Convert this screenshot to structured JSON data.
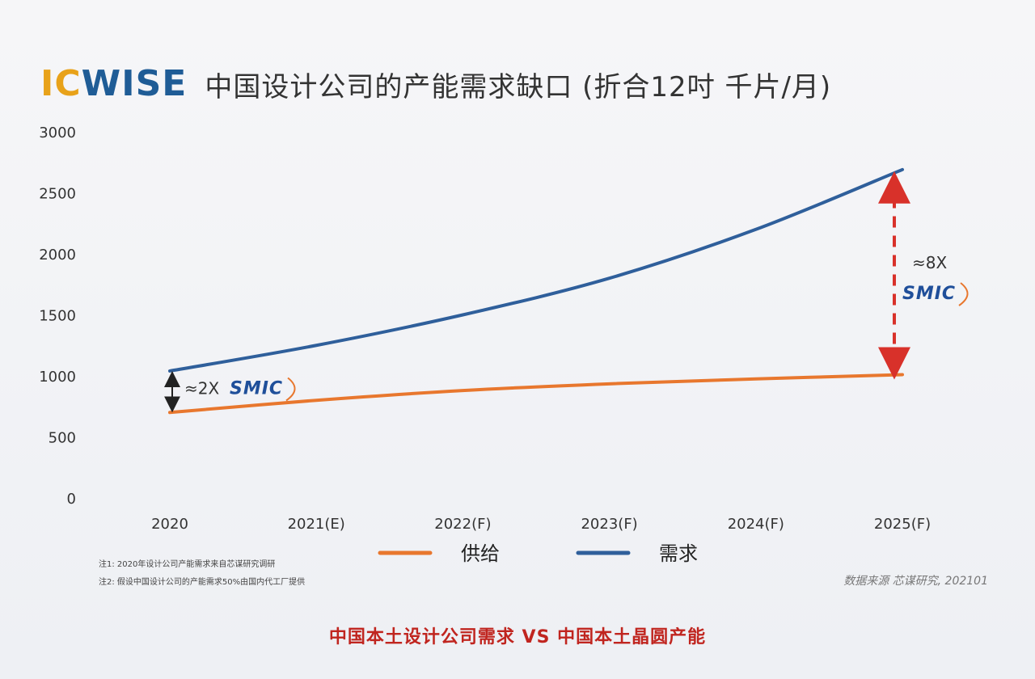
{
  "header": {
    "brand_part1": "IC",
    "brand_part2": "WISE",
    "title": "中国设计公司的产能需求缺口 (折合12吋 千片/月)"
  },
  "chart_data": {
    "type": "line",
    "categories": [
      "2020",
      "2021(E)",
      "2022(F)",
      "2023(F)",
      "2024(F)",
      "2025(F)"
    ],
    "ylim": [
      0,
      3000
    ],
    "yticks": [
      0,
      500,
      1000,
      1500,
      2000,
      2500,
      3000
    ],
    "grid": false,
    "legend_position": "bottom",
    "series": [
      {
        "name": "供给",
        "color": "#e8772e",
        "values": [
          700,
          800,
          880,
          935,
          975,
          1010
        ]
      },
      {
        "name": "需求",
        "color": "#2f5f9b",
        "values": [
          1040,
          1250,
          1500,
          1800,
          2200,
          2690
        ]
      }
    ],
    "annotations": [
      {
        "label": "≈2X",
        "logo": "SMIC",
        "category": "2020",
        "from": 700,
        "to": 1040,
        "arrow_color": "#222"
      },
      {
        "label": "≈8X",
        "logo": "SMIC",
        "category": "2025(F)",
        "from": 1010,
        "to": 2690,
        "arrow_color": "#d8312a"
      }
    ]
  },
  "notes": [
    "注1: 2020年设计公司产能需求来自芯谋研究调研",
    "注2: 假设中国设计公司的产能需求50%由国内代工厂提供"
  ],
  "source": "数据来源    芯谋研究, 202101",
  "footer": {
    "text": "中国本土设计公司需求  VS  中国本土晶圆产能",
    "color": "#c0251f"
  }
}
